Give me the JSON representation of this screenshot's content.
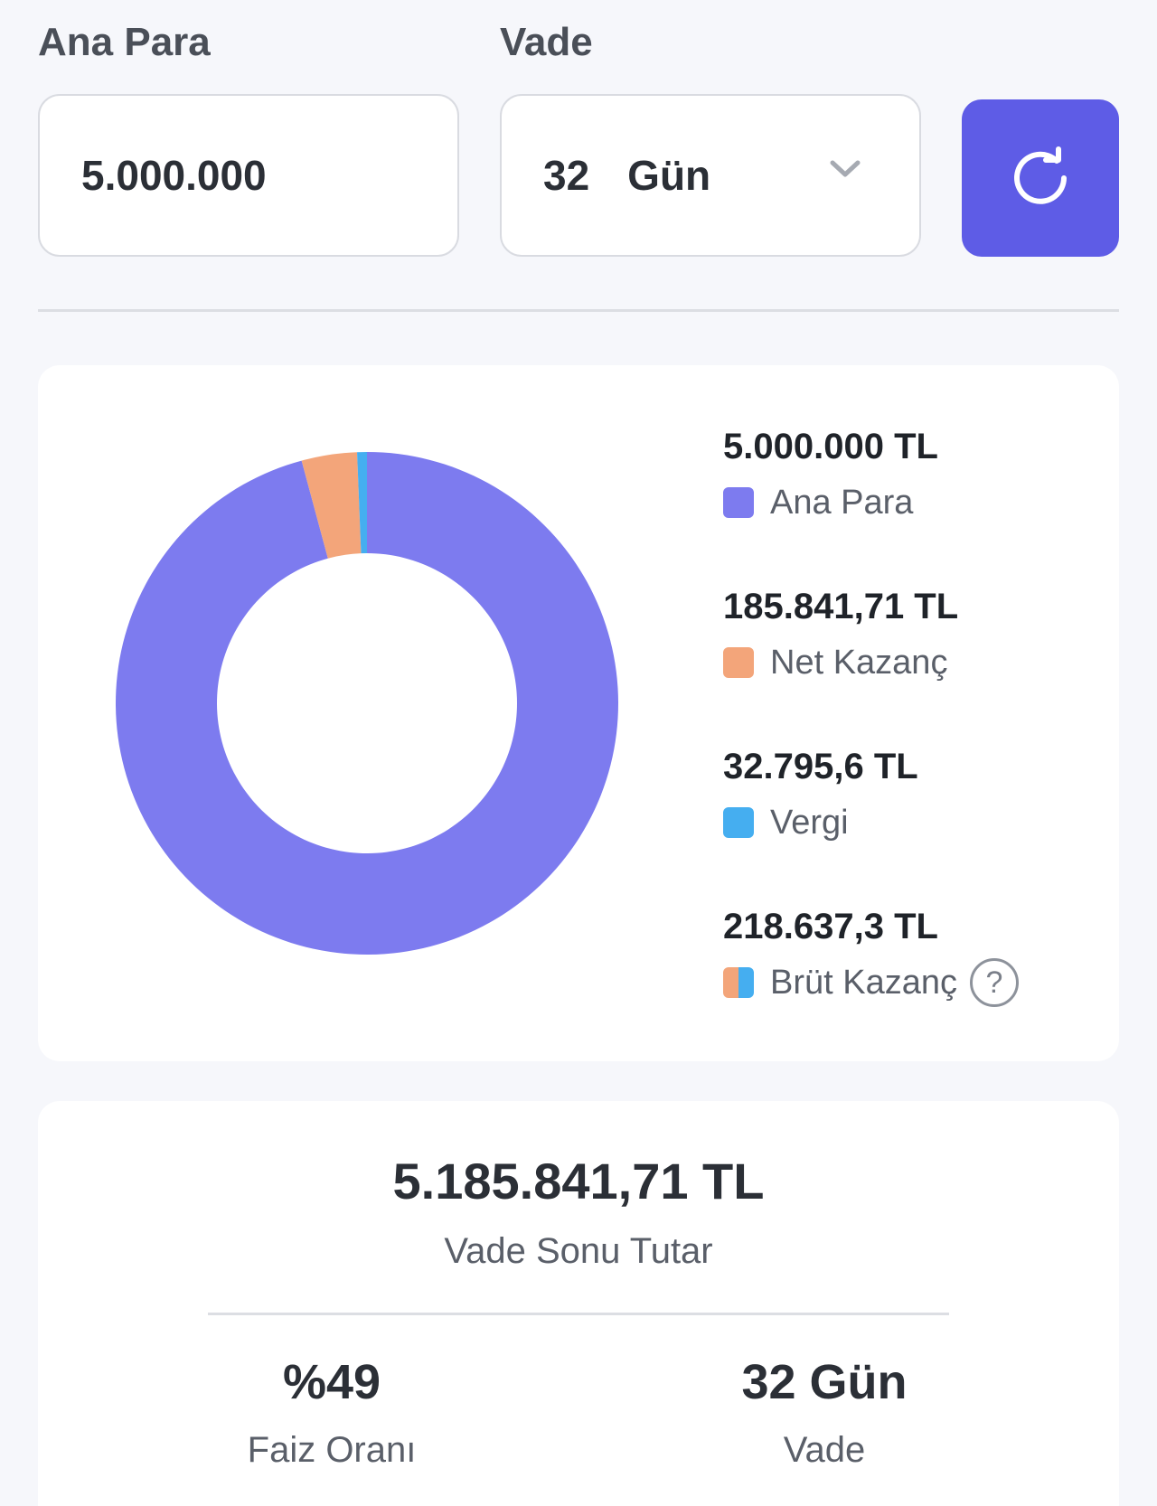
{
  "inputs": {
    "principal_label": "Ana Para",
    "principal_value": "5.000.000",
    "term_label": "Vade",
    "term_value": "32",
    "term_unit": "Gün"
  },
  "colors": {
    "accent": "#5e5ce6",
    "principal": "#7d7bef",
    "net_gain": "#f3a57a",
    "tax": "#45aef0"
  },
  "chart_data": {
    "type": "pie",
    "donut": true,
    "slices": [
      {
        "label": "Ana Para",
        "value": 5000000,
        "display": "5.000.000 TL",
        "color": "#7d7bef"
      },
      {
        "label": "Net Kazanç",
        "value": 185841.71,
        "display": "185.841,71 TL",
        "color": "#f3a57a"
      },
      {
        "label": "Vergi",
        "value": 32795.6,
        "display": "32.795,6 TL",
        "color": "#45aef0"
      }
    ],
    "extra_legend": {
      "label": "Brüt Kazanç",
      "value": 218637.3,
      "display": "218.637,3 TL"
    },
    "legend_position": "right"
  },
  "summary": {
    "total_value": "5.185.841,71 TL",
    "total_label": "Vade Sonu Tutar",
    "rate_value": "%49",
    "rate_label": "Faiz Oranı",
    "term_value": "32 Gün",
    "term_label": "Vade"
  },
  "icons": {
    "refresh": "refresh-icon",
    "dropdown": "chevron-down-icon",
    "help": "help-icon"
  }
}
